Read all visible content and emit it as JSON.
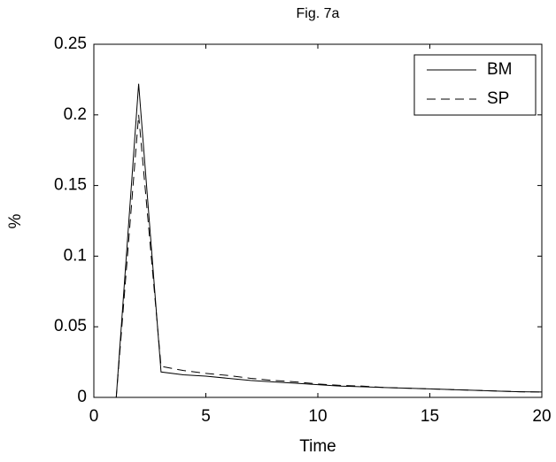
{
  "chart_data": {
    "type": "line",
    "title": "Fig. 7a",
    "xlabel": "Time",
    "ylabel": "%",
    "x": [
      1,
      2,
      3,
      4,
      5,
      6,
      7,
      8,
      9,
      10,
      11,
      12,
      13,
      14,
      15,
      16,
      17,
      18,
      19,
      20
    ],
    "series": [
      {
        "name": "BM",
        "color": "#000000",
        "dash": "solid",
        "values": [
          0,
          0.222,
          0.018,
          0.016,
          0.015,
          0.0135,
          0.012,
          0.011,
          0.01,
          0.009,
          0.008,
          0.0075,
          0.007,
          0.0065,
          0.006,
          0.0055,
          0.005,
          0.0045,
          0.004,
          0.0038
        ]
      },
      {
        "name": "SP",
        "color": "#000000",
        "dash": "dashed",
        "values": [
          0,
          0.2,
          0.022,
          0.019,
          0.017,
          0.0155,
          0.0135,
          0.012,
          0.011,
          0.0095,
          0.0085,
          0.008,
          0.007,
          0.0065,
          0.006,
          0.0055,
          0.005,
          0.0045,
          0.004,
          0.0038
        ]
      }
    ],
    "xlim": [
      0,
      20
    ],
    "xticks": [
      0,
      5,
      10,
      15,
      20
    ],
    "ylim": [
      0,
      0.25
    ],
    "yticks": [
      0,
      0.05,
      0.1,
      0.15,
      0.2,
      0.25
    ],
    "grid": false,
    "legend": "upper-right"
  }
}
